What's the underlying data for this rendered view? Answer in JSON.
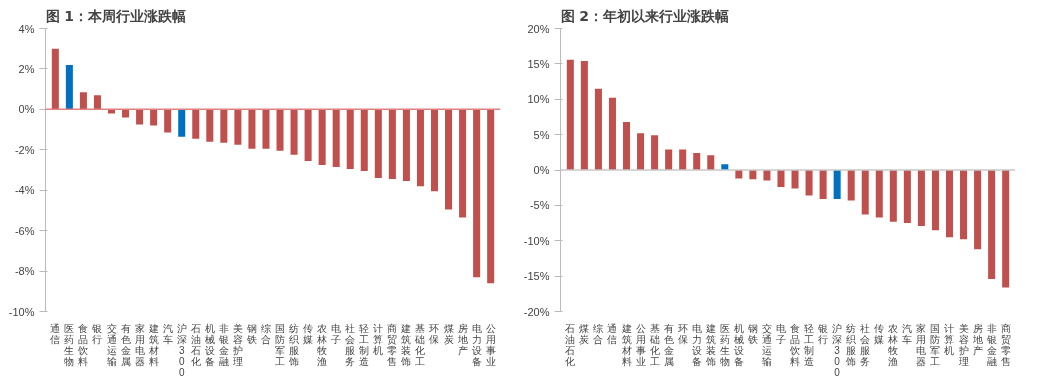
{
  "chart_data": [
    {
      "type": "bar",
      "title": "图 1：本周行业涨跌幅",
      "categories": [
        "通信",
        "医药生物",
        "食品饮料",
        "银行",
        "交通运输",
        "有色金属",
        "家用电器",
        "建筑材料",
        "汽车",
        "沪深300",
        "石油石化",
        "机械设备",
        "非银金融",
        "美容护理",
        "钢铁",
        "综合",
        "国防军工",
        "纺织服饰",
        "传媒",
        "农林牧渔",
        "电子",
        "社会服务",
        "轻工制造",
        "计算机",
        "商贸零售",
        "建筑装饰",
        "基础化工",
        "环保",
        "煤炭",
        "房地产",
        "电力设备",
        "公用事业"
      ],
      "values": [
        3.0,
        2.2,
        0.85,
        0.7,
        -0.2,
        -0.4,
        -0.75,
        -0.8,
        -1.15,
        -1.35,
        -1.45,
        -1.6,
        -1.65,
        -1.75,
        -1.95,
        -1.95,
        -2.05,
        -2.25,
        -2.55,
        -2.75,
        -2.85,
        -2.95,
        -3.05,
        -3.4,
        -3.45,
        -3.55,
        -3.8,
        -4.05,
        -4.95,
        -5.35,
        -8.3,
        -8.6
      ],
      "colors": [
        "#c0504d",
        "#0070c0",
        "#c0504d",
        "#c0504d",
        "#c0504d",
        "#c0504d",
        "#c0504d",
        "#c0504d",
        "#c0504d",
        "#0070c0",
        "#c0504d",
        "#c0504d",
        "#c0504d",
        "#c0504d",
        "#c0504d",
        "#c0504d",
        "#c0504d",
        "#c0504d",
        "#c0504d",
        "#c0504d",
        "#c0504d",
        "#c0504d",
        "#c0504d",
        "#c0504d",
        "#c0504d",
        "#c0504d",
        "#c0504d",
        "#c0504d",
        "#c0504d",
        "#c0504d",
        "#c0504d",
        "#c0504d"
      ],
      "ylim": [
        -10,
        4
      ],
      "yticks": [
        {
          "value": -10,
          "label": "-10%"
        },
        {
          "value": -8,
          "label": "-8%"
        },
        {
          "value": -6,
          "label": "-6%"
        },
        {
          "value": -4,
          "label": "-4%"
        },
        {
          "value": -2,
          "label": "-2%"
        },
        {
          "value": 0,
          "label": "0%"
        },
        {
          "value": 2,
          "label": "2%"
        },
        {
          "value": 4,
          "label": "4%"
        }
      ],
      "ref_lines": [
        {
          "axis": "y",
          "value": 0,
          "color": "#e08080"
        }
      ],
      "grid": false
    },
    {
      "type": "bar",
      "title": "图 2：年初以来行业涨跌幅",
      "categories": [
        "石油石化",
        "煤炭",
        "综合",
        "通信",
        "建筑材料",
        "公用事业",
        "基础化工",
        "有色金属",
        "环保",
        "电力设备",
        "建筑装饰",
        "医药生物",
        "机械设备",
        "钢铁",
        "交通运输",
        "电子",
        "食品饮料",
        "轻工制造",
        "银行",
        "沪深300",
        "纺织服饰",
        "社会服务",
        "传媒",
        "农林牧渔",
        "汽车",
        "家用电器",
        "国防军工",
        "计算机",
        "美容护理",
        "房地产",
        "非银金融",
        "商贸零售"
      ],
      "values": [
        15.6,
        15.4,
        11.5,
        10.2,
        6.8,
        5.2,
        4.9,
        2.9,
        2.9,
        2.4,
        2.1,
        0.8,
        -1.2,
        -1.3,
        -1.5,
        -2.4,
        -2.6,
        -3.6,
        -4.1,
        -4.1,
        -4.3,
        -6.3,
        -6.7,
        -7.3,
        -7.5,
        -7.9,
        -8.5,
        -9.5,
        -9.8,
        -11.2,
        -15.4,
        -16.6
      ],
      "colors": [
        "#c0504d",
        "#c0504d",
        "#c0504d",
        "#c0504d",
        "#c0504d",
        "#c0504d",
        "#c0504d",
        "#c0504d",
        "#c0504d",
        "#c0504d",
        "#c0504d",
        "#0070c0",
        "#c0504d",
        "#c0504d",
        "#c0504d",
        "#c0504d",
        "#c0504d",
        "#c0504d",
        "#c0504d",
        "#0070c0",
        "#c0504d",
        "#c0504d",
        "#c0504d",
        "#c0504d",
        "#c0504d",
        "#c0504d",
        "#c0504d",
        "#c0504d",
        "#c0504d",
        "#c0504d",
        "#c0504d",
        "#c0504d"
      ],
      "ylim": [
        -20,
        20
      ],
      "yticks": [
        {
          "value": -20,
          "label": "-20%"
        },
        {
          "value": -15,
          "label": "-15%"
        },
        {
          "value": -10,
          "label": "-10%"
        },
        {
          "value": -5,
          "label": "-5%"
        },
        {
          "value": 0,
          "label": "0%"
        },
        {
          "value": 5,
          "label": "5%"
        },
        {
          "value": 10,
          "label": "10%"
        },
        {
          "value": 15,
          "label": "15%"
        },
        {
          "value": 20,
          "label": "20%"
        }
      ],
      "ref_lines": [
        {
          "axis": "y",
          "value": 0,
          "color": "#c8c8c8"
        }
      ],
      "grid": false
    }
  ]
}
